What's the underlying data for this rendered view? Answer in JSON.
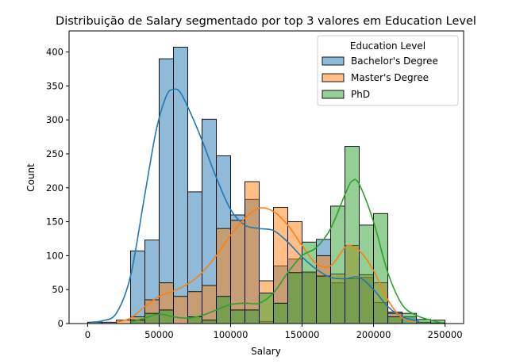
{
  "chart_data": {
    "type": "bar",
    "title": "Distribuição de Salary segmentado por top 3 valores em Education Level",
    "xlabel": "Salary",
    "ylabel": "Count",
    "xlim": [
      -13000,
      263000
    ],
    "ylim": [
      0,
      431
    ],
    "x_ticks": [
      0,
      50000,
      100000,
      150000,
      200000,
      250000
    ],
    "x_tick_labels": [
      "0",
      "50000",
      "100000",
      "150000",
      "200000",
      "250000"
    ],
    "y_ticks": [
      0,
      50,
      100,
      150,
      200,
      250,
      300,
      350,
      400
    ],
    "y_tick_labels": [
      "0",
      "50",
      "100",
      "150",
      "200",
      "250",
      "300",
      "350",
      "400"
    ],
    "bin_width": 10000,
    "bin_starts": [
      0,
      10000,
      20000,
      30000,
      40000,
      50000,
      60000,
      70000,
      80000,
      90000,
      100000,
      110000,
      120000,
      130000,
      140000,
      150000,
      160000,
      170000,
      180000,
      190000,
      200000,
      210000,
      220000,
      230000,
      240000
    ],
    "grid": false,
    "legend": {
      "title": "Education Level",
      "placement": "top-right"
    },
    "series": [
      {
        "name": "Bachelor's Degree",
        "color": "#1f77b4",
        "values": [
          2,
          2,
          0,
          107,
          123,
          390,
          407,
          194,
          301,
          247,
          160,
          183,
          3,
          85,
          95,
          75,
          124,
          60,
          66,
          68,
          31,
          17,
          10,
          2,
          1
        ],
        "kde": [
          [
            2000,
            2
          ],
          [
            10000,
            4
          ],
          [
            20000,
            15
          ],
          [
            30000,
            70
          ],
          [
            40000,
            190
          ],
          [
            48000,
            285
          ],
          [
            55000,
            335
          ],
          [
            60000,
            345
          ],
          [
            65000,
            340
          ],
          [
            72000,
            310
          ],
          [
            80000,
            270
          ],
          [
            90000,
            215
          ],
          [
            100000,
            168
          ],
          [
            110000,
            145
          ],
          [
            120000,
            140
          ],
          [
            130000,
            137
          ],
          [
            140000,
            120
          ],
          [
            150000,
            98
          ],
          [
            160000,
            80
          ],
          [
            170000,
            68
          ],
          [
            180000,
            66
          ],
          [
            190000,
            68
          ],
          [
            200000,
            50
          ],
          [
            210000,
            25
          ],
          [
            220000,
            10
          ],
          [
            232000,
            3
          ]
        ]
      },
      {
        "name": "Master's Degree",
        "color": "#ff7f0e",
        "values": [
          0,
          0,
          5,
          10,
          35,
          60,
          40,
          47,
          56,
          140,
          152,
          209,
          63,
          171,
          150,
          76,
          100,
          73,
          115,
          72,
          60,
          15,
          0,
          0,
          0
        ],
        "kde": [
          [
            20000,
            2
          ],
          [
            30000,
            8
          ],
          [
            40000,
            25
          ],
          [
            50000,
            40
          ],
          [
            60000,
            48
          ],
          [
            70000,
            58
          ],
          [
            80000,
            75
          ],
          [
            90000,
            100
          ],
          [
            100000,
            130
          ],
          [
            110000,
            155
          ],
          [
            120000,
            170
          ],
          [
            130000,
            165
          ],
          [
            140000,
            145
          ],
          [
            150000,
            115
          ],
          [
            160000,
            88
          ],
          [
            170000,
            85
          ],
          [
            180000,
            112
          ],
          [
            185000,
            114
          ],
          [
            192000,
            103
          ],
          [
            200000,
            78
          ],
          [
            210000,
            35
          ],
          [
            220000,
            8
          ],
          [
            230000,
            2
          ]
        ]
      },
      {
        "name": "PhD",
        "color": "#2ca02c",
        "values": [
          0,
          0,
          0,
          5,
          15,
          20,
          0,
          10,
          5,
          40,
          20,
          20,
          45,
          30,
          75,
          120,
          70,
          173,
          261,
          145,
          162,
          10,
          15,
          6,
          5
        ],
        "kde": [
          [
            30000,
            2
          ],
          [
            40000,
            8
          ],
          [
            50000,
            14
          ],
          [
            60000,
            10
          ],
          [
            70000,
            8
          ],
          [
            80000,
            12
          ],
          [
            90000,
            20
          ],
          [
            100000,
            28
          ],
          [
            110000,
            30
          ],
          [
            120000,
            30
          ],
          [
            130000,
            45
          ],
          [
            140000,
            75
          ],
          [
            150000,
            100
          ],
          [
            160000,
            112
          ],
          [
            170000,
            140
          ],
          [
            180000,
            190
          ],
          [
            185000,
            210
          ],
          [
            190000,
            205
          ],
          [
            200000,
            150
          ],
          [
            210000,
            75
          ],
          [
            220000,
            28
          ],
          [
            230000,
            12
          ],
          [
            240000,
            5
          ],
          [
            248000,
            1
          ]
        ]
      }
    ]
  }
}
